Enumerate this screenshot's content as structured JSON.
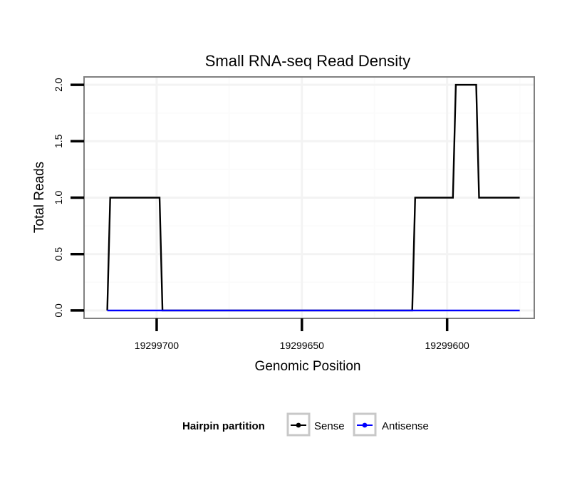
{
  "chart_data": {
    "type": "line",
    "title": "Small RNA-seq Read Density",
    "xlabel": "Genomic Position",
    "ylabel": "Total Reads",
    "x_reversed": true,
    "xlim": [
      19299725,
      19299570
    ],
    "ylim": [
      -0.07,
      2.07
    ],
    "grid": true,
    "x_ticks": [
      19299700,
      19299650,
      19299600
    ],
    "x_tick_labels": [
      "19299700",
      "19299650",
      "19299600"
    ],
    "y_ticks": [
      0.0,
      0.5,
      1.0,
      1.5,
      2.0
    ],
    "y_tick_labels": [
      "0.0",
      "0.5",
      "1.0",
      "1.5",
      "2.0"
    ],
    "series": [
      {
        "name": "Sense",
        "color": "#000000",
        "x": [
          19299717,
          19299716,
          19299699,
          19299698,
          19299612,
          19299611,
          19299598,
          19299597,
          19299590,
          19299589,
          19299575
        ],
        "values": [
          0,
          1,
          1,
          0,
          0,
          1,
          1,
          2,
          2,
          1,
          1
        ]
      },
      {
        "name": "Antisense",
        "color": "#0000ff",
        "x": [
          19299717,
          19299575
        ],
        "values": [
          0,
          0
        ]
      }
    ],
    "legend": {
      "title": "Hairpin partition",
      "position": "bottom",
      "entries": [
        "Sense",
        "Antisense"
      ]
    }
  }
}
